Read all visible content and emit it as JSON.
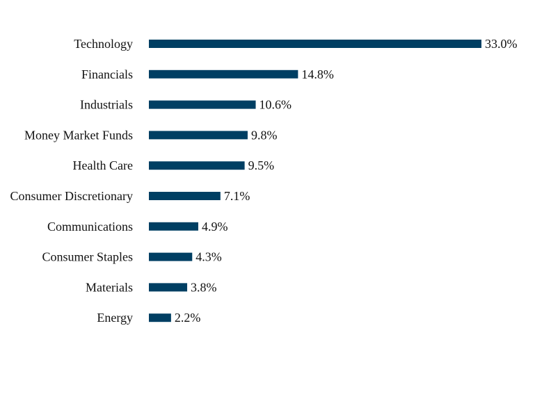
{
  "chart_data": {
    "type": "bar",
    "orientation": "horizontal",
    "categories": [
      "Technology",
      "Financials",
      "Industrials",
      "Money Market Funds",
      "Health Care",
      "Consumer Discretionary",
      "Communications",
      "Consumer Staples",
      "Materials",
      "Energy"
    ],
    "values": [
      33.0,
      14.8,
      10.6,
      9.8,
      9.5,
      7.1,
      4.9,
      4.3,
      3.8,
      2.2
    ],
    "value_labels": [
      "33.0%",
      "14.8%",
      "10.6%",
      "9.8%",
      "9.5%",
      "7.1%",
      "4.9%",
      "4.3%",
      "3.8%",
      "2.2%"
    ],
    "title": "",
    "xlabel": "",
    "ylabel": "",
    "xlim": [
      0,
      33.0
    ],
    "grid": false,
    "bar_color": "#003f63"
  }
}
